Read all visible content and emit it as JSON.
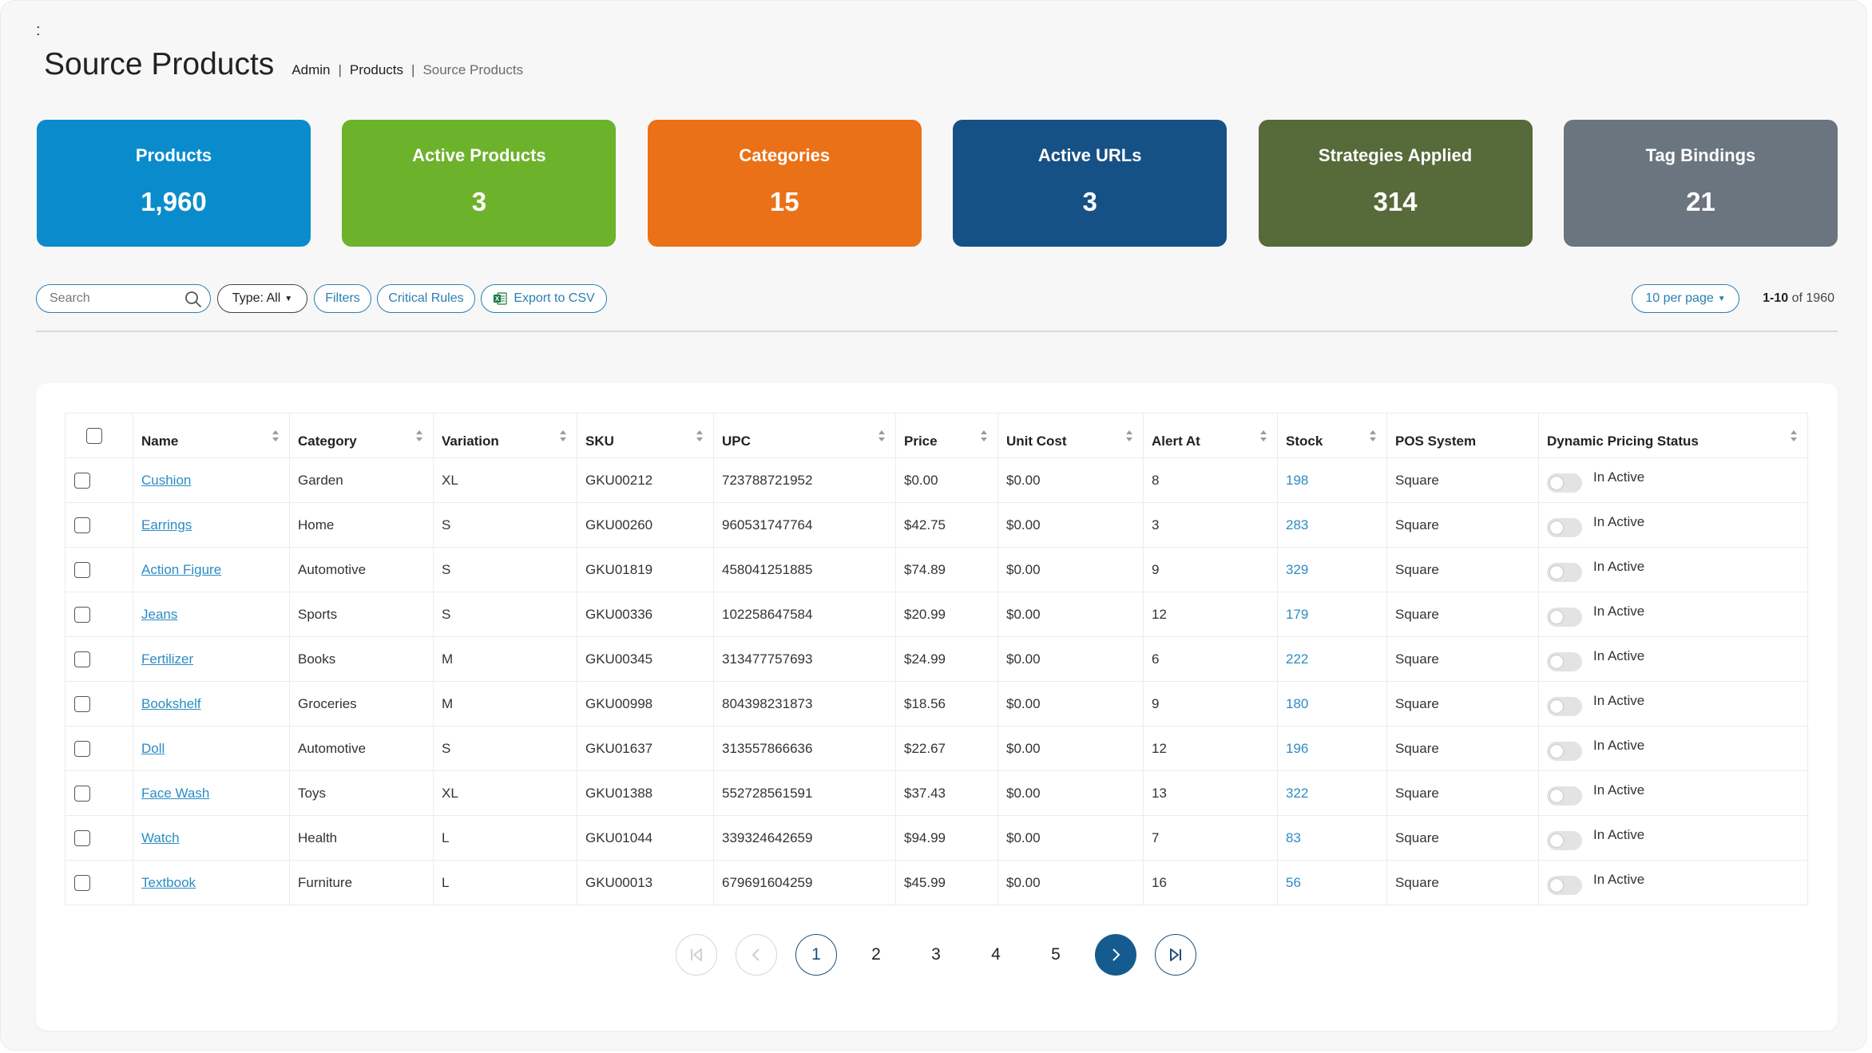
{
  "header": {
    "menu_glyph": ":",
    "title": "Source Products",
    "breadcrumb": [
      "Admin",
      "Products",
      "Source Products"
    ]
  },
  "cards": [
    {
      "label": "Products",
      "value": "1,960",
      "color": "#0a8ccc"
    },
    {
      "label": "Active Products",
      "value": "3",
      "color": "#6cb22b"
    },
    {
      "label": "Categories",
      "value": "15",
      "color": "#ea7117"
    },
    {
      "label": "Active URLs",
      "value": "3",
      "color": "#165186"
    },
    {
      "label": "Strategies Applied",
      "value": "314",
      "color": "#576a39"
    },
    {
      "label": "Tag Bindings",
      "value": "21",
      "color": "#6a757f"
    }
  ],
  "toolbar": {
    "search_placeholder": "Search",
    "type_label": "Type: All",
    "filters_label": "Filters",
    "critical_rules_label": "Critical Rules",
    "export_label": "Export to CSV",
    "per_page_label": "10 per page",
    "range_bold": "1-10",
    "range_rest": "of 1960",
    "accent_color": "#2b7fb2"
  },
  "table": {
    "columns": [
      "Name",
      "Category",
      "Variation",
      "SKU",
      "UPC",
      "Price",
      "Unit Cost",
      "Alert At",
      "Stock",
      "POS System",
      "Dynamic Pricing Status"
    ],
    "rows": [
      {
        "name": "Cushion",
        "category": "Garden",
        "variation": "XL",
        "sku": "GKU00212",
        "upc": "723788721952",
        "price": "$0.00",
        "unit_cost": "$0.00",
        "alert_at": "8",
        "stock": "198",
        "pos": "Square",
        "status": "In Active"
      },
      {
        "name": "Earrings",
        "category": "Home",
        "variation": "S",
        "sku": "GKU00260",
        "upc": "960531747764",
        "price": "$42.75",
        "unit_cost": "$0.00",
        "alert_at": "3",
        "stock": "283",
        "pos": "Square",
        "status": "In Active"
      },
      {
        "name": "Action Figure",
        "category": "Automotive",
        "variation": "S",
        "sku": "GKU01819",
        "upc": "458041251885",
        "price": "$74.89",
        "unit_cost": "$0.00",
        "alert_at": "9",
        "stock": "329",
        "pos": "Square",
        "status": "In Active"
      },
      {
        "name": "Jeans",
        "category": "Sports",
        "variation": "S",
        "sku": "GKU00336",
        "upc": "102258647584",
        "price": "$20.99",
        "unit_cost": "$0.00",
        "alert_at": "12",
        "stock": "179",
        "pos": "Square",
        "status": "In Active"
      },
      {
        "name": "Fertilizer",
        "category": "Books",
        "variation": "M",
        "sku": "GKU00345",
        "upc": "313477757693",
        "price": "$24.99",
        "unit_cost": "$0.00",
        "alert_at": "6",
        "stock": "222",
        "pos": "Square",
        "status": "In Active"
      },
      {
        "name": "Bookshelf",
        "category": "Groceries",
        "variation": "M",
        "sku": "GKU00998",
        "upc": "804398231873",
        "price": "$18.56",
        "unit_cost": "$0.00",
        "alert_at": "9",
        "stock": "180",
        "pos": "Square",
        "status": "In Active"
      },
      {
        "name": "Doll",
        "category": "Automotive",
        "variation": "S",
        "sku": "GKU01637",
        "upc": "313557866636",
        "price": "$22.67",
        "unit_cost": "$0.00",
        "alert_at": "12",
        "stock": "196",
        "pos": "Square",
        "status": "In Active"
      },
      {
        "name": "Face Wash",
        "category": "Toys",
        "variation": "XL",
        "sku": "GKU01388",
        "upc": "552728561591",
        "price": "$37.43",
        "unit_cost": "$0.00",
        "alert_at": "13",
        "stock": "322",
        "pos": "Square",
        "status": "In Active"
      },
      {
        "name": "Watch",
        "category": "Health",
        "variation": "L",
        "sku": "GKU01044",
        "upc": "339324642659",
        "price": "$94.99",
        "unit_cost": "$0.00",
        "alert_at": "7",
        "stock": "83",
        "pos": "Square",
        "status": "In Active"
      },
      {
        "name": "Textbook",
        "category": "Furniture",
        "variation": "L",
        "sku": "GKU00013",
        "upc": "679691604259",
        "price": "$45.99",
        "unit_cost": "$0.00",
        "alert_at": "16",
        "stock": "56",
        "pos": "Square",
        "status": "In Active"
      }
    ]
  },
  "pagination": {
    "pages": [
      "1",
      "2",
      "3",
      "4",
      "5"
    ],
    "current": "1",
    "accent_color": "#165b8f"
  }
}
